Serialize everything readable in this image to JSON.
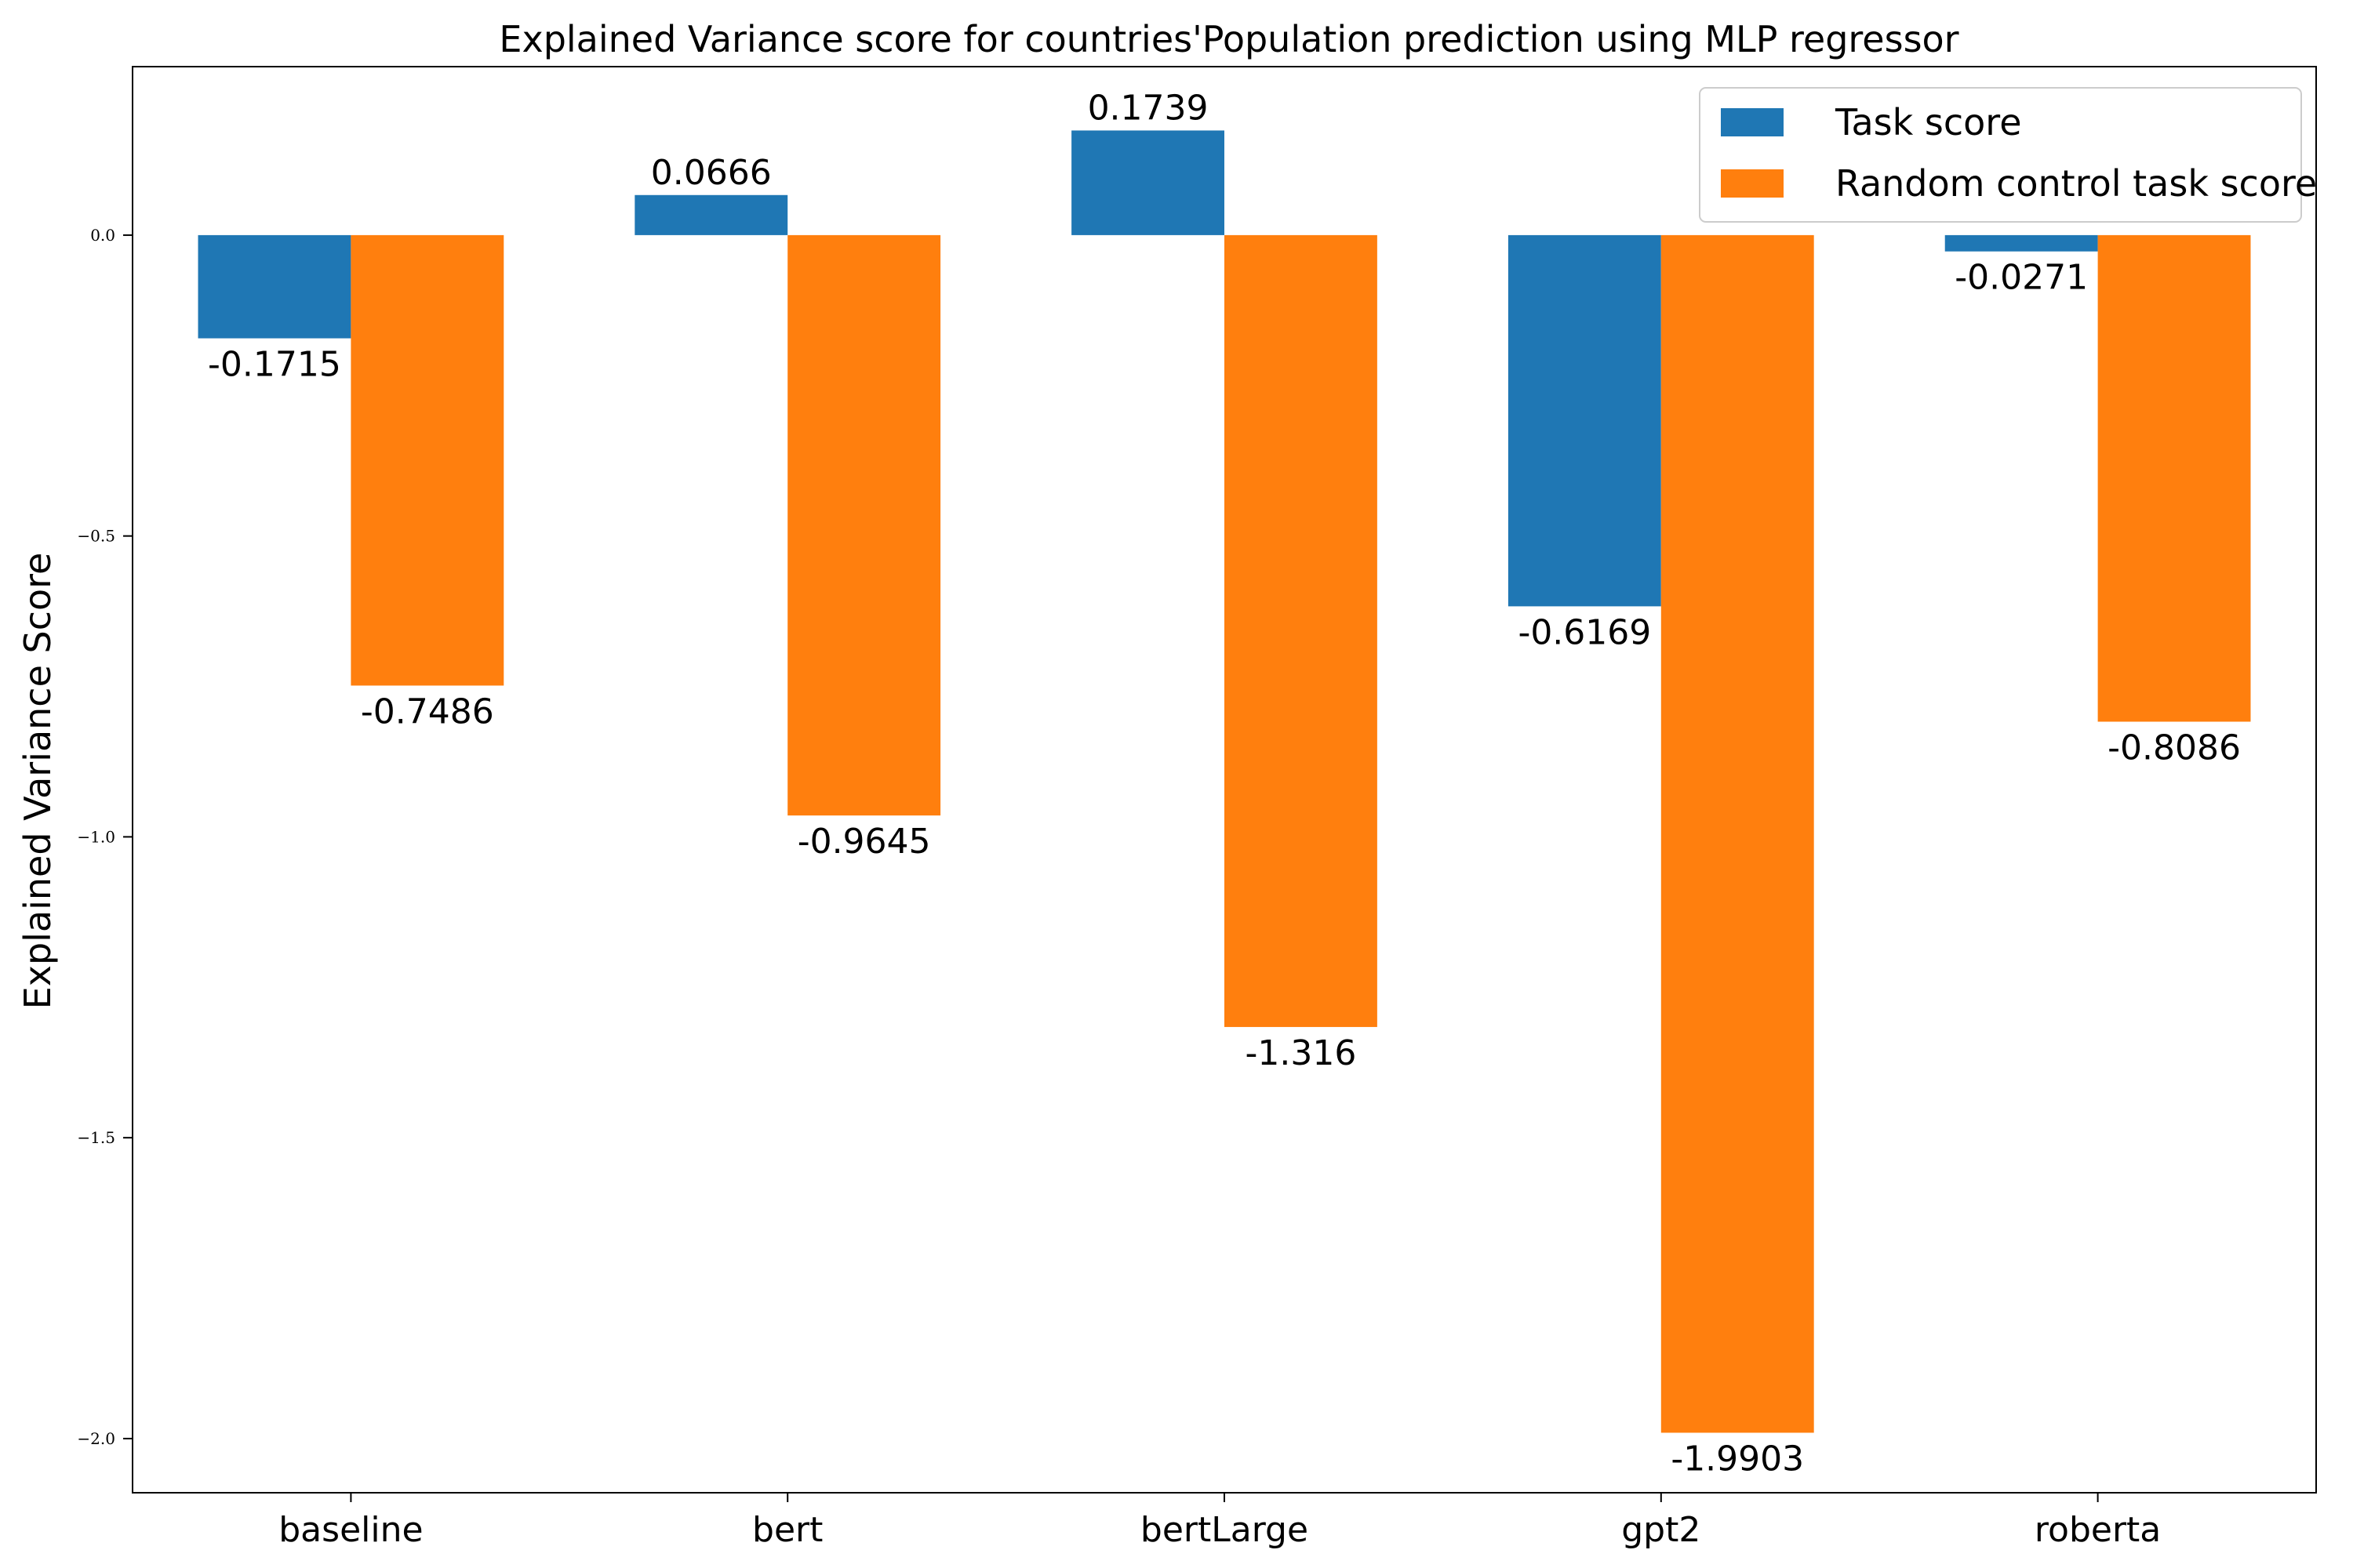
{
  "chart_data": {
    "type": "bar",
    "title": "Explained Variance score for countries'Population prediction using MLP regressor",
    "xlabel": "",
    "ylabel": "Explained Variance Score",
    "categories": [
      "baseline",
      "bert",
      "bertLarge",
      "gpt2",
      "roberta"
    ],
    "series": [
      {
        "name": "Task score",
        "color": "#1f77b4",
        "values": [
          -0.1715,
          0.0666,
          0.1739,
          -0.6169,
          -0.0271
        ],
        "labels": [
          "-0.1715",
          "0.0666",
          "0.1739",
          "-0.6169",
          "-0.0271"
        ]
      },
      {
        "name": "Random control task score",
        "color": "#ff7f0e",
        "values": [
          -0.7486,
          -0.9645,
          -1.316,
          -1.9903,
          -0.8086
        ],
        "labels": [
          "-0.7486",
          "-0.9645",
          "-1.316",
          "-1.9903",
          "-0.8086"
        ]
      }
    ],
    "ylim": [
      -2.09,
      0.28
    ],
    "yticks": [
      0.0,
      -0.5,
      -1.0,
      -1.5,
      -2.0
    ],
    "ytick_labels": [
      "0.0",
      "−0.5",
      "−1.0",
      "−1.5",
      "−2.0"
    ],
    "legend_position": "top-right",
    "grid": false
  }
}
